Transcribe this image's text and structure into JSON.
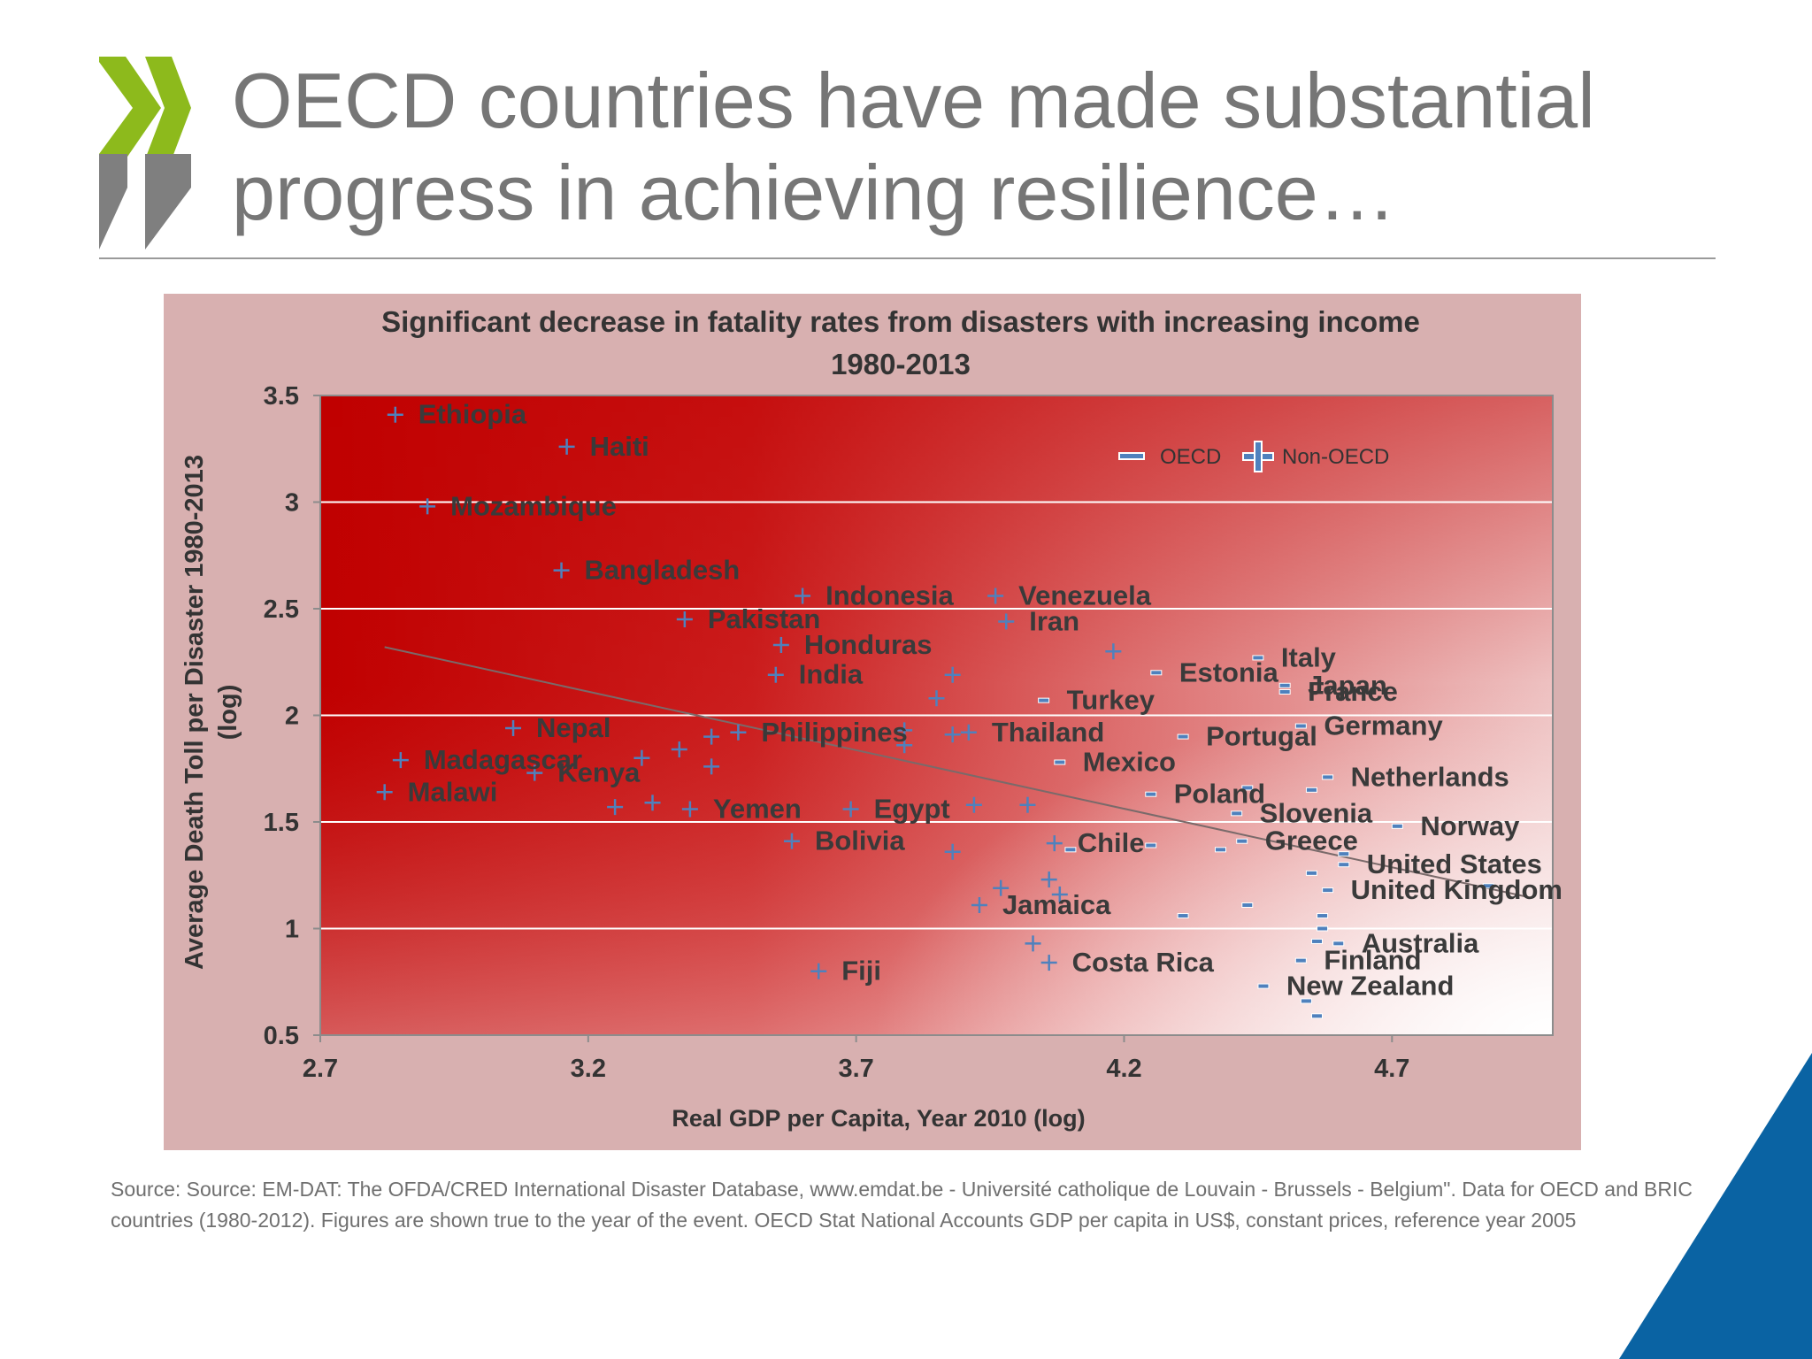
{
  "slide": {
    "title_line1": "OECD countries have made substantial",
    "title_line2": "progress in achieving resilience…",
    "source": "Source: Source: EM-DAT: The OFDA/CRED International Disaster Database, www.emdat.be - Université catholique de Louvain - Brussels - Belgium\". Data for OECD and BRIC countries (1980-2012). Figures are shown true to the year of the event. OECD Stat National Accounts GDP per capita in US$, constant prices, reference year 2005"
  },
  "colors": {
    "brand_green": "#8dba1c",
    "brand_grey": "#7f7f7f",
    "brand_blue": "#0a63a3",
    "panel": "#d8b0b0",
    "plot_red": "#c00000",
    "marker": "#4f81bd"
  },
  "chart_data": {
    "type": "scatter",
    "title": "Significant decrease in fatality rates from disasters with increasing income",
    "subtitle": "1980-2013",
    "xlabel": "Real GDP per Capita, Year 2010 (log)",
    "ylabel_line1": "Average Death Toll per Disaster 1980-2013",
    "ylabel_line2": "(log)",
    "xlim": [
      2.7,
      5.0
    ],
    "ylim": [
      0.5,
      3.5
    ],
    "xticks": [
      2.7,
      3.2,
      3.7,
      4.2,
      4.7
    ],
    "xtick_labels": [
      "2.7",
      "3.2",
      "3.7",
      "4.2",
      "4.7"
    ],
    "yticks": [
      0.5,
      1,
      1.5,
      2,
      2.5,
      3,
      3.5
    ],
    "ytick_labels": [
      "0.5",
      "1",
      "1.5",
      "2",
      "2.5",
      "3",
      "3.5"
    ],
    "grid": true,
    "legend": [
      {
        "name": "OECD",
        "marker": "dash"
      },
      {
        "name": "Non-OECD",
        "marker": "plus"
      }
    ],
    "trendline": {
      "x": [
        2.82,
        4.95
      ],
      "y": [
        2.32,
        1.15
      ]
    },
    "series": [
      {
        "name": "Non-OECD",
        "marker": "plus",
        "points": [
          {
            "x": 2.84,
            "y": 3.41,
            "label": "Ethiopia"
          },
          {
            "x": 3.16,
            "y": 3.26,
            "label": "Haiti"
          },
          {
            "x": 2.9,
            "y": 2.98,
            "label": "Mozambique"
          },
          {
            "x": 3.15,
            "y": 2.68,
            "label": "Bangladesh"
          },
          {
            "x": 3.6,
            "y": 2.56,
            "label": "Indonesia"
          },
          {
            "x": 3.96,
            "y": 2.56,
            "label": "Venezuela"
          },
          {
            "x": 3.98,
            "y": 2.44,
            "label": "Iran"
          },
          {
            "x": 3.38,
            "y": 2.45,
            "label": "Pakistan"
          },
          {
            "x": 3.56,
            "y": 2.33,
            "label": "Honduras"
          },
          {
            "x": 3.55,
            "y": 2.19,
            "label": "India"
          },
          {
            "x": 4.18,
            "y": 2.3,
            "label": ""
          },
          {
            "x": 3.88,
            "y": 2.19,
            "label": ""
          },
          {
            "x": 3.85,
            "y": 2.08,
            "label": ""
          },
          {
            "x": 3.06,
            "y": 1.94,
            "label": "Nepal"
          },
          {
            "x": 3.48,
            "y": 1.92,
            "label": "Philippines"
          },
          {
            "x": 3.43,
            "y": 1.9,
            "label": ""
          },
          {
            "x": 3.79,
            "y": 1.93,
            "label": ""
          },
          {
            "x": 3.79,
            "y": 1.86,
            "label": ""
          },
          {
            "x": 3.88,
            "y": 1.91,
            "label": ""
          },
          {
            "x": 3.91,
            "y": 1.92,
            "label": "Thailand"
          },
          {
            "x": 2.85,
            "y": 1.79,
            "label": "Madagascar"
          },
          {
            "x": 3.3,
            "y": 1.8,
            "label": ""
          },
          {
            "x": 3.37,
            "y": 1.84,
            "label": ""
          },
          {
            "x": 3.43,
            "y": 1.76,
            "label": ""
          },
          {
            "x": 3.1,
            "y": 1.73,
            "label": "Kenya"
          },
          {
            "x": 2.82,
            "y": 1.64,
            "label": "Malawi"
          },
          {
            "x": 3.25,
            "y": 1.57,
            "label": ""
          },
          {
            "x": 3.32,
            "y": 1.59,
            "label": ""
          },
          {
            "x": 3.39,
            "y": 1.56,
            "label": "Yemen"
          },
          {
            "x": 3.69,
            "y": 1.56,
            "label": "Egypt"
          },
          {
            "x": 3.92,
            "y": 1.58,
            "label": ""
          },
          {
            "x": 4.02,
            "y": 1.58,
            "label": ""
          },
          {
            "x": 3.58,
            "y": 1.41,
            "label": "Bolivia"
          },
          {
            "x": 3.88,
            "y": 1.36,
            "label": ""
          },
          {
            "x": 4.07,
            "y": 1.4,
            "label": "Chile"
          },
          {
            "x": 4.06,
            "y": 1.23,
            "label": ""
          },
          {
            "x": 3.97,
            "y": 1.19,
            "label": ""
          },
          {
            "x": 4.08,
            "y": 1.16,
            "label": ""
          },
          {
            "x": 3.93,
            "y": 1.11,
            "label": "Jamaica"
          },
          {
            "x": 4.03,
            "y": 0.93,
            "label": ""
          },
          {
            "x": 4.06,
            "y": 0.84,
            "label": "Costa Rica"
          },
          {
            "x": 3.63,
            "y": 0.8,
            "label": "Fiji"
          }
        ]
      },
      {
        "name": "OECD",
        "marker": "dash",
        "points": [
          {
            "x": 4.45,
            "y": 2.27,
            "label": "Italy"
          },
          {
            "x": 4.26,
            "y": 2.2,
            "label": "Estonia"
          },
          {
            "x": 4.5,
            "y": 2.14,
            "label": "Japan"
          },
          {
            "x": 4.5,
            "y": 2.11,
            "label": "France"
          },
          {
            "x": 4.05,
            "y": 2.07,
            "label": "Turkey"
          },
          {
            "x": 4.53,
            "y": 1.95,
            "label": "Germany"
          },
          {
            "x": 4.31,
            "y": 1.9,
            "label": "Portugal"
          },
          {
            "x": 4.08,
            "y": 1.78,
            "label": "Mexico"
          },
          {
            "x": 4.58,
            "y": 1.71,
            "label": "Netherlands"
          },
          {
            "x": 4.25,
            "y": 1.63,
            "label": "Poland"
          },
          {
            "x": 4.43,
            "y": 1.66,
            "label": ""
          },
          {
            "x": 4.55,
            "y": 1.65,
            "label": ""
          },
          {
            "x": 4.41,
            "y": 1.54,
            "label": "Slovenia"
          },
          {
            "x": 4.71,
            "y": 1.48,
            "label": "Norway"
          },
          {
            "x": 4.25,
            "y": 1.39,
            "label": ""
          },
          {
            "x": 4.1,
            "y": 1.37,
            "label": ""
          },
          {
            "x": 4.38,
            "y": 1.37,
            "label": ""
          },
          {
            "x": 4.42,
            "y": 1.41,
            "label": "Greece"
          },
          {
            "x": 4.61,
            "y": 1.3,
            "label": "United States"
          },
          {
            "x": 4.55,
            "y": 1.26,
            "label": ""
          },
          {
            "x": 4.61,
            "y": 1.35,
            "label": ""
          },
          {
            "x": 4.58,
            "y": 1.18,
            "label": "United Kingdom"
          },
          {
            "x": 4.88,
            "y": 1.2,
            "label": ""
          },
          {
            "x": 4.43,
            "y": 1.11,
            "label": ""
          },
          {
            "x": 4.31,
            "y": 1.06,
            "label": ""
          },
          {
            "x": 4.57,
            "y": 1.06,
            "label": ""
          },
          {
            "x": 4.57,
            "y": 1.0,
            "label": ""
          },
          {
            "x": 4.6,
            "y": 0.93,
            "label": "Australia"
          },
          {
            "x": 4.56,
            "y": 0.94,
            "label": ""
          },
          {
            "x": 4.53,
            "y": 0.85,
            "label": "Finland"
          },
          {
            "x": 4.46,
            "y": 0.73,
            "label": "New Zealand"
          },
          {
            "x": 4.54,
            "y": 0.66,
            "label": ""
          },
          {
            "x": 4.56,
            "y": 0.59,
            "label": ""
          }
        ]
      }
    ]
  }
}
